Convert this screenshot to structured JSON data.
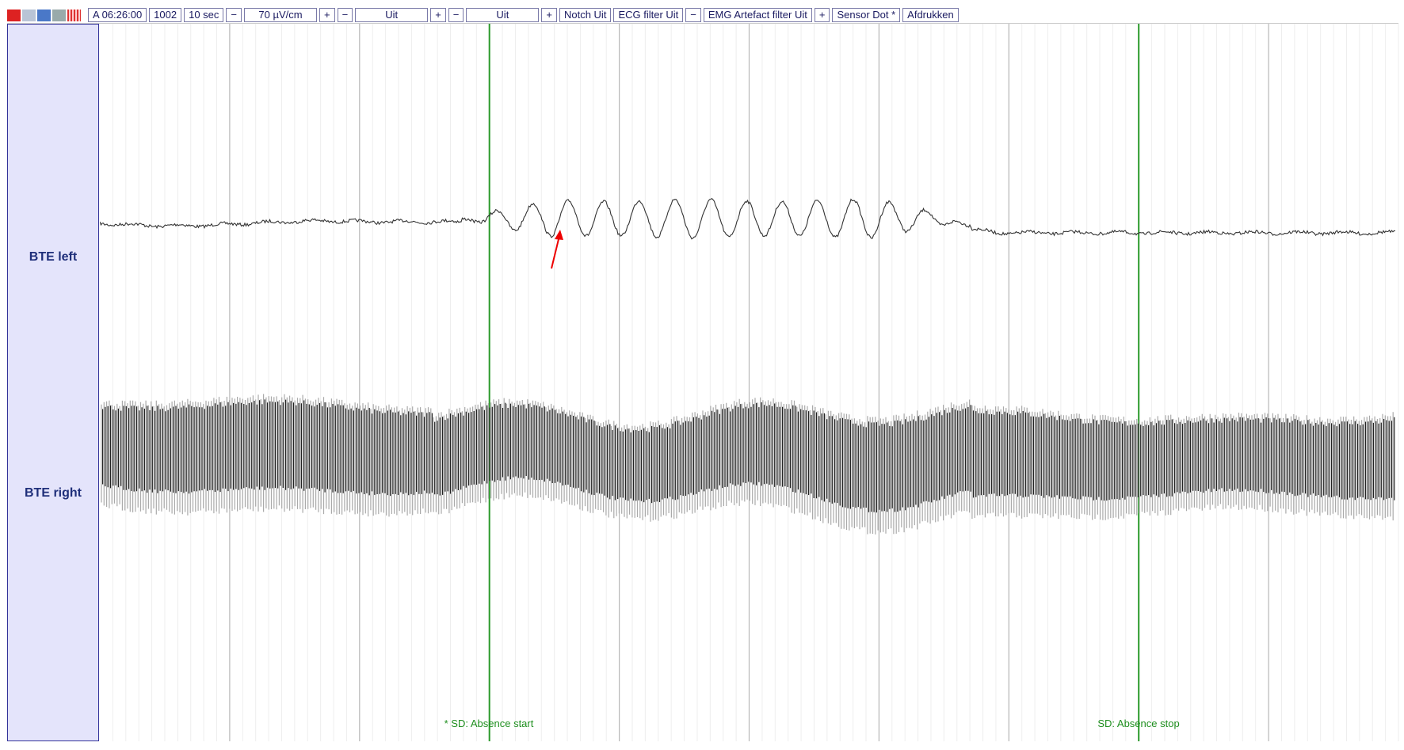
{
  "toolbar": {
    "items": [
      "A 06:26:00",
      "1002",
      "10 sec",
      "−",
      "70 µV/cm",
      "+",
      "−",
      "Uit",
      "+",
      "−",
      "Uit",
      "+",
      "Notch Uit",
      "ECG filter Uit",
      "−",
      "EMG Artefact filter Uit",
      "+",
      "Sensor Dot *",
      "Afdrukken"
    ]
  },
  "channels": [
    "BTE left",
    "BTE right"
  ],
  "annotations": [
    "* SD: Absence start",
    "SD: Absence stop"
  ]
}
